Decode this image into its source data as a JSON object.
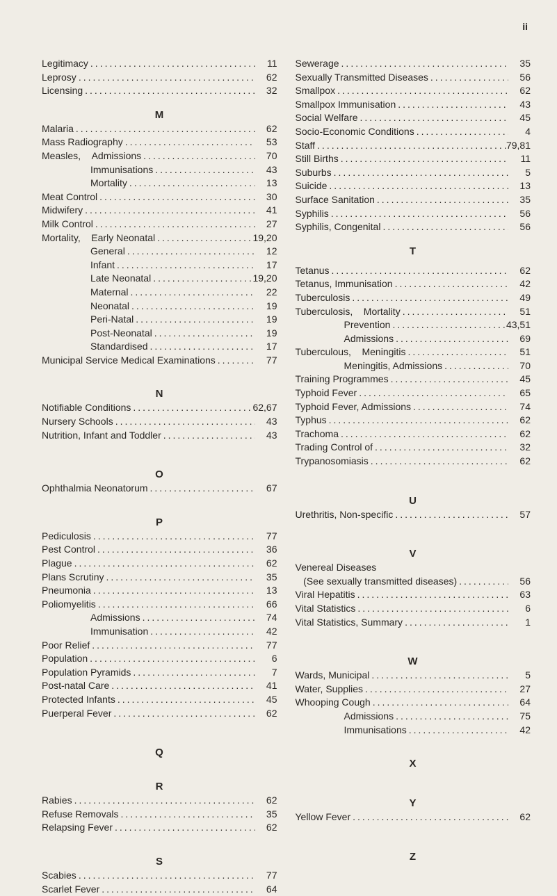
{
  "page_number": "ii",
  "left": [
    {
      "label": "Legitimacy",
      "num": "11"
    },
    {
      "label": "Leprosy",
      "num": "62"
    },
    {
      "label": "Licensing",
      "num": "32"
    },
    {
      "type": "spacer"
    },
    {
      "type": "header",
      "text": "M"
    },
    {
      "label": "Malaria",
      "num": "62"
    },
    {
      "label": "Mass Radiography",
      "num": "53"
    },
    {
      "label": "Measles,",
      "sub": "Admissions",
      "num": "70"
    },
    {
      "indent": 1,
      "label": "Immunisations",
      "num": "43"
    },
    {
      "indent": 1,
      "label": "Mortality",
      "num": "13"
    },
    {
      "label": "Meat Control",
      "num": "30"
    },
    {
      "label": "Midwifery",
      "num": "41"
    },
    {
      "label": "Milk Control",
      "num": "27"
    },
    {
      "label": "Mortality,",
      "sub": "Early Neonatal",
      "num": "19,20"
    },
    {
      "indent": 1,
      "label": "General",
      "num": "12"
    },
    {
      "indent": 1,
      "label": "Infant",
      "num": "17"
    },
    {
      "indent": 1,
      "label": "Late Neonatal",
      "num": "19,20"
    },
    {
      "indent": 1,
      "label": "Maternal",
      "num": "22"
    },
    {
      "indent": 1,
      "label": "Neonatal",
      "num": "19"
    },
    {
      "indent": 1,
      "label": "Peri-Natal",
      "num": "19"
    },
    {
      "indent": 1,
      "label": "Post-Neonatal",
      "num": "19"
    },
    {
      "indent": 1,
      "label": "Standardised",
      "num": "17"
    },
    {
      "label": "Municipal Service Medical Examinations",
      "num": "77"
    },
    {
      "type": "spacer"
    },
    {
      "type": "header",
      "text": "N"
    },
    {
      "label": "Notifiable Conditions",
      "num": "62,67"
    },
    {
      "label": "Nursery Schools",
      "num": "43"
    },
    {
      "label": "Nutrition, Infant and Toddler",
      "num": "43"
    },
    {
      "type": "spacer"
    },
    {
      "type": "spacer-sm"
    },
    {
      "type": "header",
      "text": "O"
    },
    {
      "label": "Ophthalmia Neonatorum",
      "num": "67"
    },
    {
      "type": "spacer"
    },
    {
      "type": "header",
      "text": "P"
    },
    {
      "label": "Pediculosis",
      "num": "77"
    },
    {
      "label": "Pest Control",
      "num": "36"
    },
    {
      "label": "Plague",
      "num": "62"
    },
    {
      "label": "Plans Scrutiny",
      "num": "35"
    },
    {
      "label": "Pneumonia",
      "num": "13"
    },
    {
      "label": "Poliomyelitis",
      "num": "66"
    },
    {
      "indent": 1,
      "label": "Admissions",
      "num": "74"
    },
    {
      "indent": 1,
      "label": "Immunisation",
      "num": "42"
    },
    {
      "label": "Poor Relief",
      "num": "77"
    },
    {
      "label": "Population",
      "num": "6"
    },
    {
      "label": "Population Pyramids",
      "num": "7"
    },
    {
      "label": "Post-natal Care",
      "num": "41"
    },
    {
      "label": "Protected Infants",
      "num": "45"
    },
    {
      "label": "Puerperal Fever",
      "num": "62"
    },
    {
      "type": "spacer"
    },
    {
      "type": "spacer-sm"
    },
    {
      "type": "header",
      "text": "Q"
    },
    {
      "type": "spacer"
    },
    {
      "type": "header",
      "text": "R"
    },
    {
      "label": "Rabies",
      "num": "62"
    },
    {
      "label": "Refuse Removals",
      "num": "35"
    },
    {
      "label": "Relapsing Fever",
      "num": "62"
    },
    {
      "type": "spacer"
    },
    {
      "type": "header",
      "text": "S"
    },
    {
      "label": "Scabies",
      "num": "77"
    },
    {
      "label": "Scarlet Fever",
      "num": "64"
    }
  ],
  "right": [
    {
      "label": "Sewerage",
      "num": "35"
    },
    {
      "label": "Sexually Transmitted Diseases",
      "num": "56"
    },
    {
      "label": "Smallpox",
      "num": "62"
    },
    {
      "label": "Smallpox Immunisation",
      "num": "43"
    },
    {
      "label": "Social Welfare",
      "num": "45"
    },
    {
      "label": "Socio-Economic Conditions",
      "num": "4"
    },
    {
      "label": "Staff",
      "num": "79,81"
    },
    {
      "label": "Still Births",
      "num": "11"
    },
    {
      "label": "Suburbs",
      "num": "5"
    },
    {
      "label": "Suicide",
      "num": "13"
    },
    {
      "label": "Surface Sanitation",
      "num": "35"
    },
    {
      "label": "Syphilis",
      "num": "56"
    },
    {
      "label": "Syphilis, Congenital",
      "num": "56"
    },
    {
      "type": "spacer"
    },
    {
      "type": "header",
      "text": "T"
    },
    {
      "type": "spacer-sm"
    },
    {
      "label": "Tetanus",
      "num": "62"
    },
    {
      "label": "Tetanus, Immunisation",
      "num": "42"
    },
    {
      "label": "Tuberculosis",
      "num": "49"
    },
    {
      "label": "Tuberculosis,",
      "sub": "Mortality",
      "num": "51"
    },
    {
      "indent": 2,
      "label": "Prevention",
      "num": "43,51"
    },
    {
      "indent": 2,
      "label": "Admissions",
      "num": "69"
    },
    {
      "label": "Tuberculous,",
      "sub": "Meningitis",
      "num": "51"
    },
    {
      "indent": 2,
      "label": "Meningitis, Admissions",
      "num": "70"
    },
    {
      "label": "Training Programmes",
      "num": "45"
    },
    {
      "label": "Typhoid Fever",
      "num": "65"
    },
    {
      "label": "Typhoid Fever, Admissions",
      "num": "74"
    },
    {
      "label": "Typhus",
      "num": "62"
    },
    {
      "label": "Trachoma",
      "num": "62"
    },
    {
      "label": "Trading Control of",
      "num": "32"
    },
    {
      "label": "Trypanosomiasis",
      "num": "62"
    },
    {
      "type": "spacer"
    },
    {
      "type": "spacer-sm"
    },
    {
      "type": "header",
      "text": "U"
    },
    {
      "label": "Urethritis, Non-specific",
      "num": "57"
    },
    {
      "type": "spacer"
    },
    {
      "type": "spacer-sm"
    },
    {
      "type": "header",
      "text": "V"
    },
    {
      "label": "Venereal Diseases",
      "nodots": true,
      "num": ""
    },
    {
      "label": "   (See sexually transmitted diseases)",
      "num": "56"
    },
    {
      "label": "Viral Hepatitis",
      "num": "63"
    },
    {
      "label": "Vital Statistics",
      "num": "6"
    },
    {
      "label": "Vital Statistics, Summary",
      "num": "1"
    },
    {
      "type": "spacer"
    },
    {
      "type": "spacer-sm"
    },
    {
      "type": "header",
      "text": "W"
    },
    {
      "label": "Wards, Municipal",
      "num": "5"
    },
    {
      "label": "Water, Supplies",
      "num": "27"
    },
    {
      "label": "Whooping Cough",
      "num": "64"
    },
    {
      "indent": 2,
      "label": "Admissions",
      "num": "75"
    },
    {
      "indent": 2,
      "label": "Immunisations",
      "num": "42"
    },
    {
      "type": "spacer"
    },
    {
      "type": "header",
      "text": "X"
    },
    {
      "type": "spacer"
    },
    {
      "type": "spacer-sm"
    },
    {
      "type": "header",
      "text": "Y"
    },
    {
      "label": "Yellow Fever",
      "num": "62"
    },
    {
      "type": "spacer"
    },
    {
      "type": "spacer-sm"
    },
    {
      "type": "header",
      "text": "Z"
    }
  ]
}
